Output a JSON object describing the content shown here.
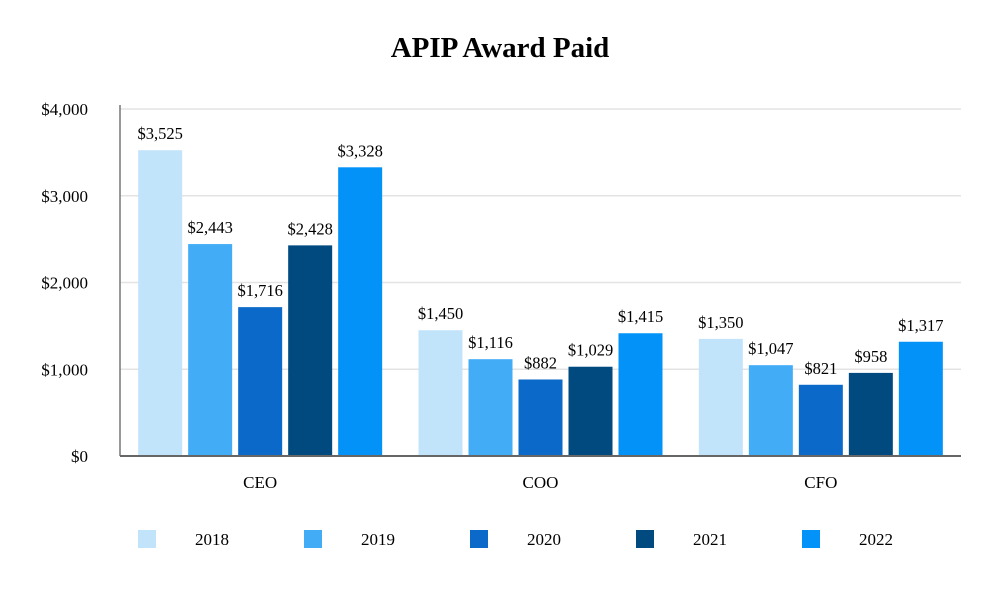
{
  "chart_data": {
    "type": "bar",
    "title": "APIP Award Paid",
    "xlabel": "",
    "ylabel": "",
    "ylim": [
      0,
      4000
    ],
    "yticks": [
      0,
      1000,
      2000,
      3000,
      4000
    ],
    "ytick_labels": [
      "$0",
      "$1,000",
      "$2,000",
      "$3,000",
      "$4,000"
    ],
    "grid": true,
    "legend_position": "bottom",
    "categories": [
      "CEO",
      "COO",
      "CFO"
    ],
    "series": [
      {
        "name": "2018",
        "color": "#c1e4fb",
        "values": [
          3525,
          1450,
          1350
        ],
        "labels": [
          "$3,525",
          "$1,450",
          "$1,350"
        ]
      },
      {
        "name": "2019",
        "color": "#42adf6",
        "values": [
          2443,
          1116,
          1047
        ],
        "labels": [
          "$2,443",
          "$1,116",
          "$1,047"
        ]
      },
      {
        "name": "2020",
        "color": "#0b69c9",
        "values": [
          1716,
          882,
          821
        ],
        "labels": [
          "$1,716",
          "$882",
          "$821"
        ]
      },
      {
        "name": "2021",
        "color": "#014a80",
        "values": [
          2428,
          1029,
          958
        ],
        "labels": [
          "$2,428",
          "$1,029",
          "$958"
        ]
      },
      {
        "name": "2022",
        "color": "#0393f8",
        "values": [
          3328,
          1415,
          1317
        ],
        "labels": [
          "$3,328",
          "$1,415",
          "$1,317"
        ]
      }
    ]
  }
}
